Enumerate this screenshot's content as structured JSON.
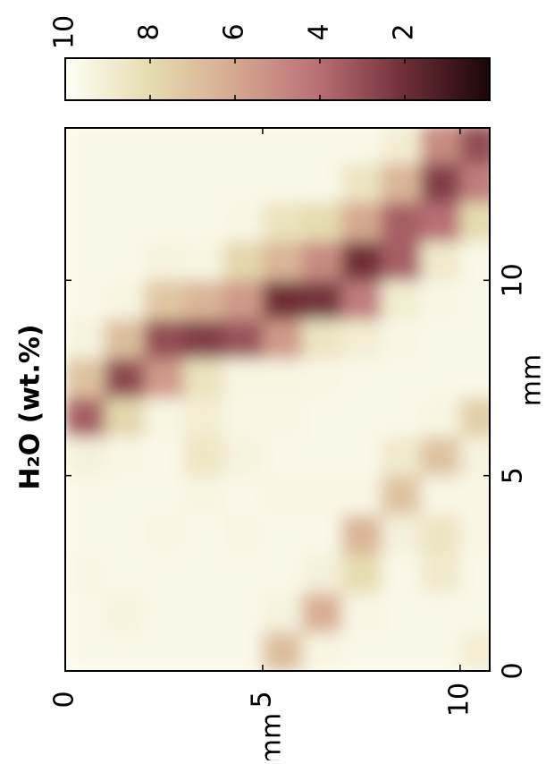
{
  "chart_data": {
    "type": "heatmap",
    "title": "H₂O (wt.%)",
    "xlabel": "mm",
    "ylabel": "mm",
    "x": [
      0.5,
      1.5,
      2.5,
      3.5,
      4.5,
      5.5,
      6.5,
      7.5,
      8.5,
      9.5,
      10.5,
      11.5,
      12.5,
      13.5
    ],
    "y": [
      0.5,
      1.5,
      2.5,
      3.5,
      4.5,
      5.5,
      6.5,
      7.5,
      8.5,
      9.5,
      10.5
    ],
    "z": [
      [
        9.6,
        9.6,
        9.5,
        9.6,
        9.6,
        9.2,
        3.5,
        7.0,
        9.3,
        9.6,
        9.6,
        9.6,
        9.6,
        9.6
      ],
      [
        9.6,
        9.3,
        9.6,
        9.6,
        9.6,
        9.5,
        7.8,
        2.8,
        6.8,
        9.4,
        9.6,
        9.6,
        9.6,
        9.6
      ],
      [
        9.6,
        9.6,
        9.6,
        9.5,
        9.6,
        9.6,
        9.4,
        5.5,
        3.0,
        7.2,
        9.3,
        9.6,
        9.6,
        9.6
      ],
      [
        9.6,
        9.6,
        9.6,
        9.6,
        9.4,
        8.6,
        9.0,
        8.4,
        2.5,
        6.5,
        9.4,
        9.6,
        9.6,
        9.6
      ],
      [
        9.6,
        9.6,
        9.6,
        9.5,
        9.6,
        9.3,
        9.5,
        9.4,
        3.2,
        5.5,
        7.8,
        9.5,
        9.6,
        9.6
      ],
      [
        6.8,
        9.3,
        9.6,
        9.6,
        9.5,
        9.6,
        9.5,
        9.4,
        5.5,
        2.0,
        6.5,
        8.4,
        9.6,
        9.6
      ],
      [
        9.4,
        6.2,
        9.2,
        9.6,
        9.5,
        9.6,
        9.6,
        9.5,
        8.5,
        2.2,
        5.0,
        8.0,
        9.6,
        9.6
      ],
      [
        9.6,
        9.5,
        8.0,
        6.5,
        9.5,
        9.6,
        9.6,
        9.6,
        9.0,
        4.5,
        2.0,
        6.0,
        8.5,
        9.6
      ],
      [
        9.6,
        9.6,
        9.6,
        9.2,
        7.0,
        8.8,
        9.6,
        9.6,
        9.5,
        9.0,
        3.5,
        3.5,
        6.5,
        9.0
      ],
      [
        9.6,
        9.6,
        8.8,
        8.5,
        9.5,
        7.0,
        9.4,
        9.6,
        9.6,
        9.5,
        8.8,
        4.0,
        2.5,
        5.0
      ],
      [
        9.0,
        9.6,
        9.6,
        9.5,
        9.5,
        9.3,
        7.5,
        9.6,
        9.6,
        9.6,
        9.6,
        8.0,
        4.5,
        3.0
      ]
    ],
    "xlim": [
      0,
      13.9
    ],
    "xticks": [
      0,
      5,
      10
    ],
    "ylim": [
      0,
      10.75
    ],
    "yticks": [
      0,
      5,
      10
    ],
    "clim": [
      0,
      10
    ],
    "cticks": [
      10,
      8,
      6,
      4,
      2
    ],
    "colormap": [
      "#1a0508",
      "#6e2e36",
      "#b86e74",
      "#d6a890",
      "#e6dcb0",
      "#fffff6"
    ]
  }
}
